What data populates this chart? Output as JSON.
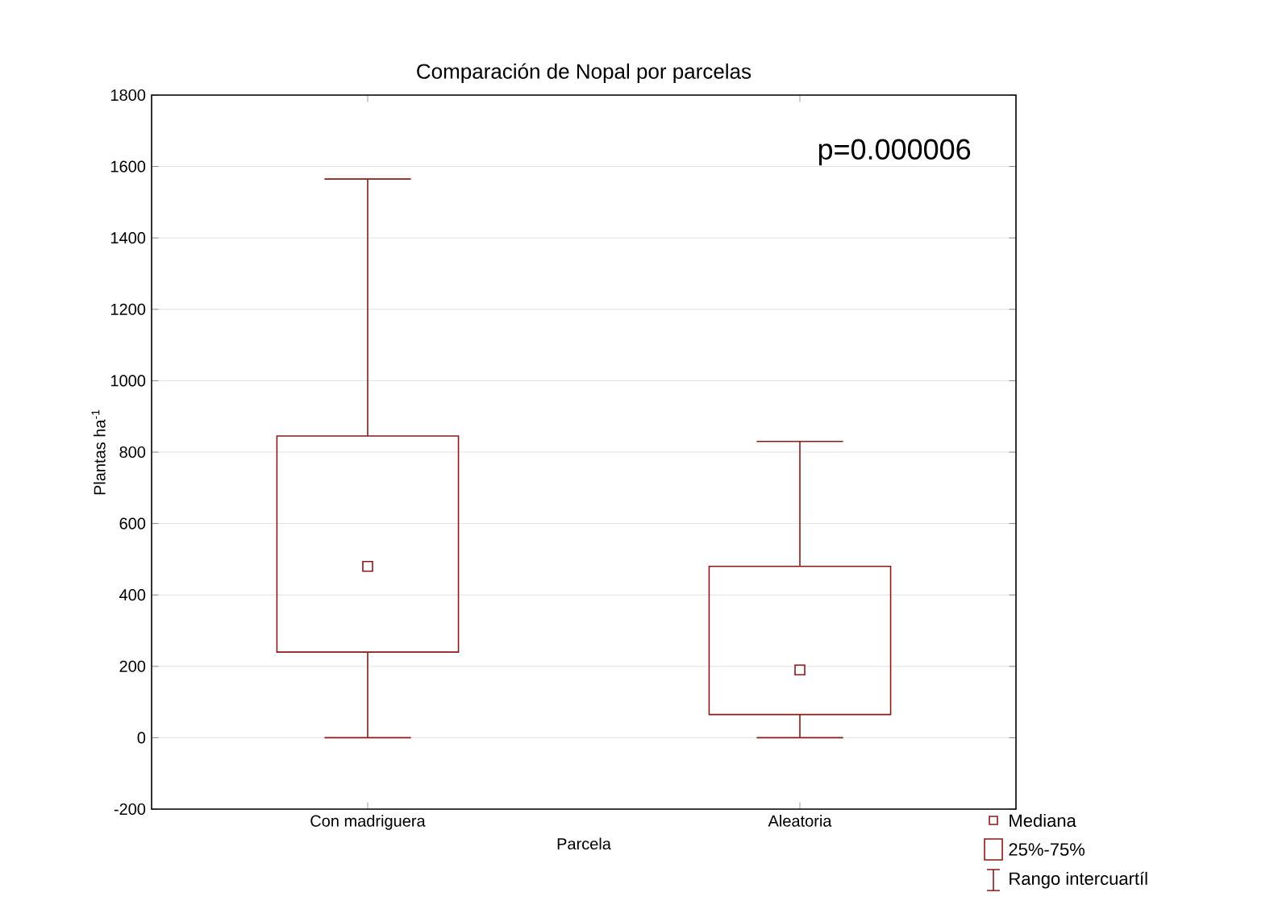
{
  "chart_data": {
    "type": "box",
    "title": "Comparación de Nopal por parcelas",
    "xlabel": "Parcela",
    "ylabel": "Plantas ha$^{-1}$",
    "categories": [
      "Con madriguera",
      "Aleatoria"
    ],
    "boxes": [
      {
        "low": 0,
        "q1": 240,
        "median": 480,
        "q3": 845,
        "high": 1565
      },
      {
        "low": 0,
        "q1": 65,
        "median": 190,
        "q3": 480,
        "high": 830
      }
    ],
    "color": "#8b1a1a",
    "ylim": [
      -200,
      1800
    ],
    "yticks": [
      -200,
      0,
      200,
      400,
      600,
      800,
      1000,
      1200,
      1400,
      1600,
      1800
    ],
    "grid": "y",
    "marker": "square",
    "annotations": [
      "p=0.000006",
      "Mediana",
      "25%-75%",
      "Rango intercuartíl"
    ]
  }
}
